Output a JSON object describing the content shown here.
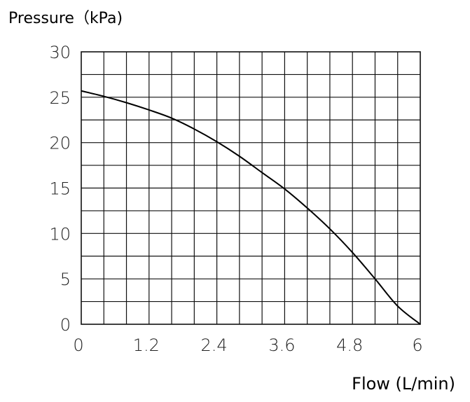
{
  "chart_data": {
    "type": "line",
    "ylabel": "Pressure（kPa)",
    "xlabel": "Flow (L/min)",
    "xlim": [
      0,
      6
    ],
    "ylim": [
      0,
      30
    ],
    "grid": true,
    "x_minor_step": 0.4,
    "y_minor_step": 2.5,
    "x_ticks": [
      {
        "value": 0,
        "label": "0"
      },
      {
        "value": 1.2,
        "label": "1.2"
      },
      {
        "value": 2.4,
        "label": "2.4"
      },
      {
        "value": 3.6,
        "label": "3.6"
      },
      {
        "value": 4.8,
        "label": "4.8"
      },
      {
        "value": 6,
        "label": "6"
      }
    ],
    "y_ticks": [
      {
        "value": 0,
        "label": "0"
      },
      {
        "value": 5,
        "label": "5"
      },
      {
        "value": 10,
        "label": "10"
      },
      {
        "value": 15,
        "label": "15"
      },
      {
        "value": 20,
        "label": "20"
      },
      {
        "value": 25,
        "label": "25"
      },
      {
        "value": 30,
        "label": "30"
      }
    ],
    "series": [
      {
        "x": [
          0,
          0.4,
          0.8,
          1.2,
          1.6,
          2.0,
          2.4,
          2.8,
          3.2,
          3.6,
          4.0,
          4.4,
          4.8,
          5.2,
          5.6,
          6.0
        ],
        "y": [
          25.7,
          25.1,
          24.4,
          23.6,
          22.7,
          21.5,
          20.1,
          18.5,
          16.7,
          14.9,
          12.8,
          10.5,
          7.9,
          5.0,
          2.0,
          0
        ]
      }
    ]
  }
}
